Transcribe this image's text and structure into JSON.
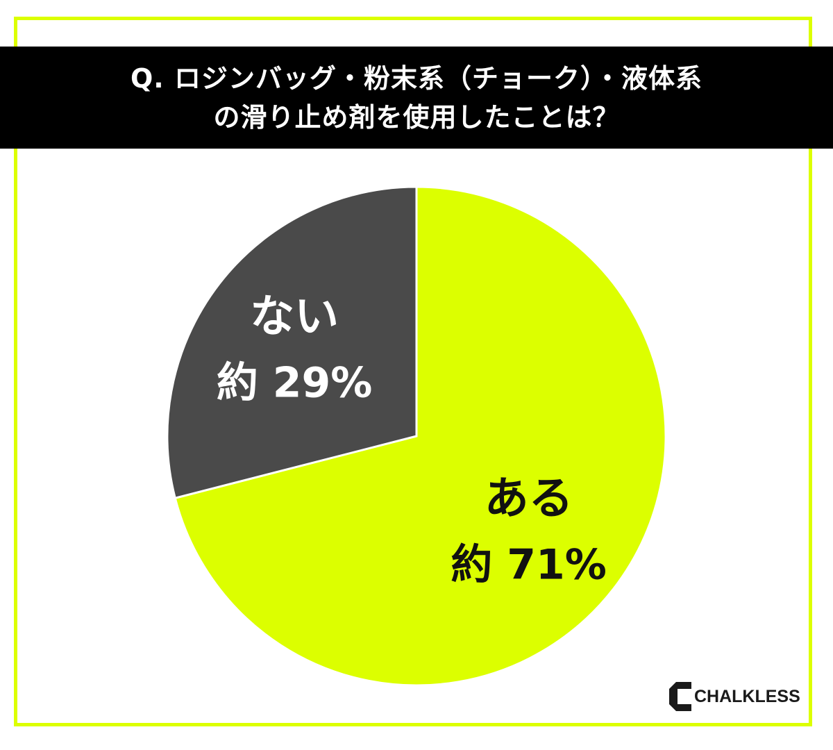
{
  "header": {
    "title_line1": "Q. ロジンバッグ・粉末系（チョーク）・液体系",
    "title_line2": "の滑り止め剤を使用したことは？"
  },
  "chart_data": {
    "type": "pie",
    "title": "Q. ロジンバッグ・粉末系（チョーク）・液体系の滑り止め剤を使用したことは？",
    "slices": [
      {
        "label": "ある",
        "value_label": "約 71%",
        "value": 71,
        "color": "#dcff00",
        "text_color": "#111111"
      },
      {
        "label": "ない",
        "value_label": "約 29%",
        "value": 29,
        "color": "#4a4a4a",
        "text_color": "#ffffff"
      }
    ],
    "start_angle_deg": 0,
    "direction": "clockwise",
    "legend": "none"
  },
  "brand": {
    "name": "CHALKLESS"
  },
  "colors": {
    "accent": "#dcff00",
    "dark": "#4a4a4a",
    "band": "#000000"
  }
}
